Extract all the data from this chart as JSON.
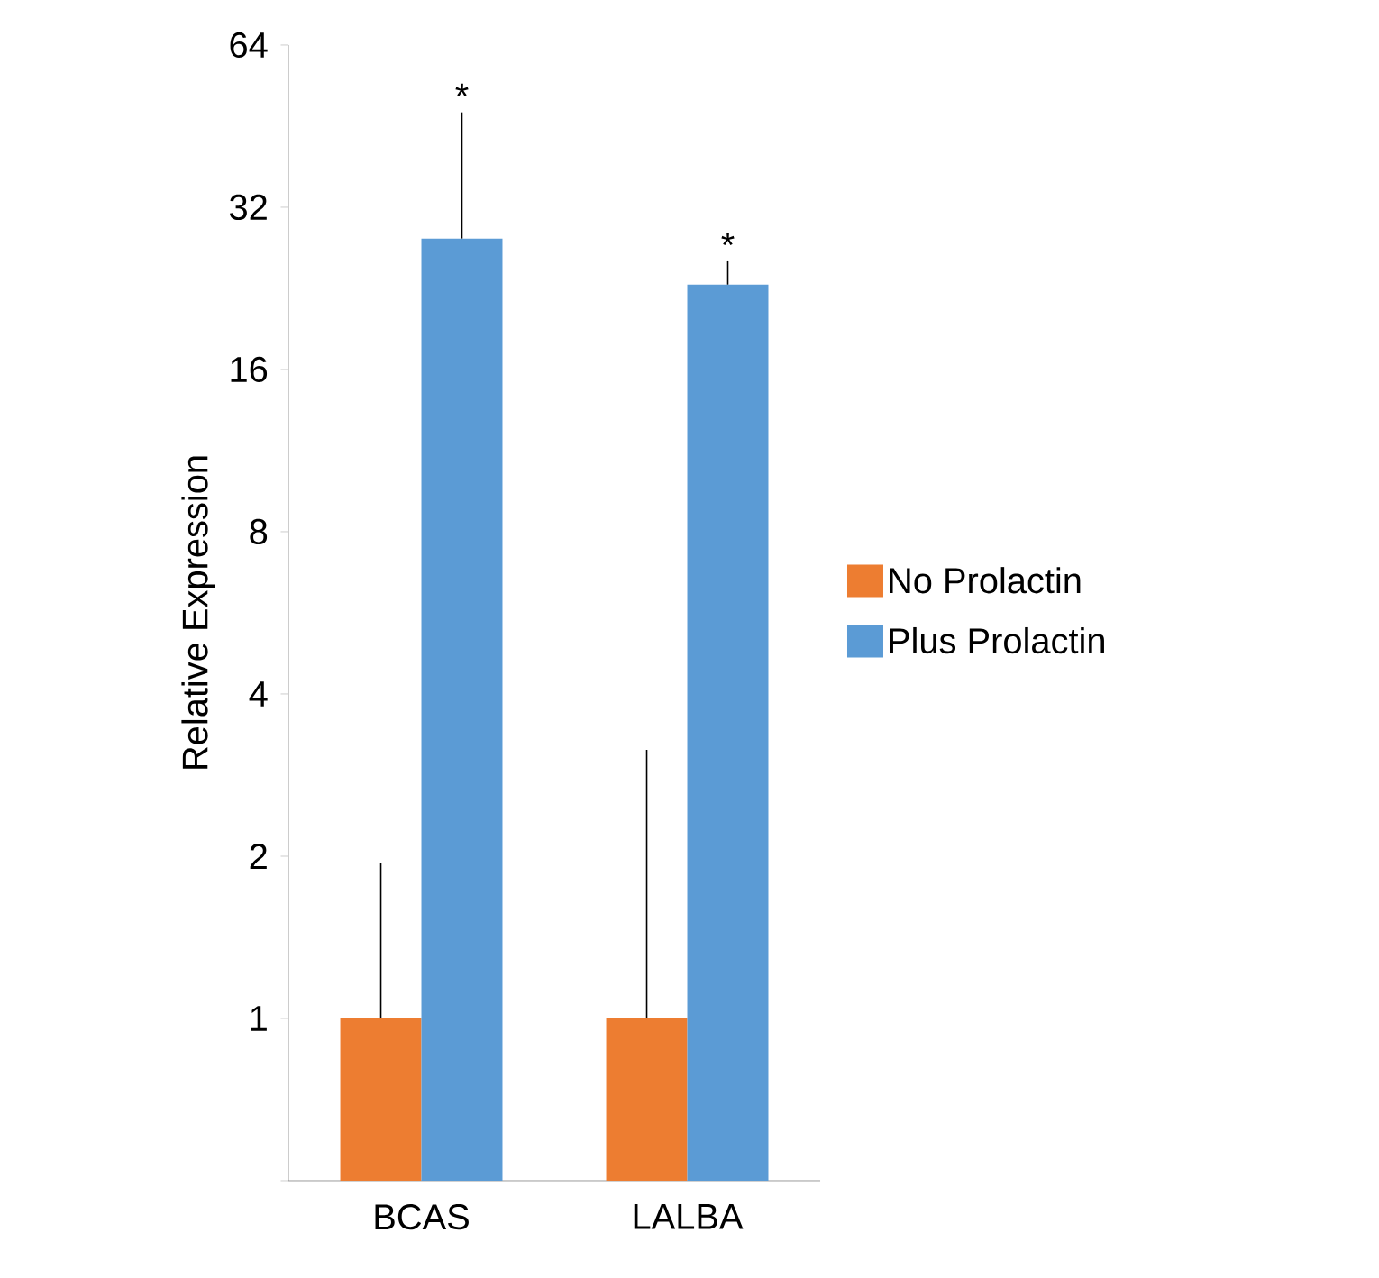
{
  "chart_data": {
    "type": "bar",
    "ylabel": "Relative Expression",
    "categories": [
      "BCAS",
      "LALBA"
    ],
    "series": [
      {
        "name": "No Prolactin",
        "color": "#ed7d31",
        "values": [
          1,
          1
        ],
        "errors": [
          [
            1,
            1.94
          ],
          [
            1,
            3.15
          ]
        ]
      },
      {
        "name": "Plus Prolactin",
        "color": "#5b9bd5",
        "values": [
          28,
          23
        ],
        "errors": [
          [
            28,
            48
          ],
          [
            23,
            25.4
          ]
        ]
      }
    ],
    "log": "y",
    "ylim": [
      0.5,
      64
    ],
    "yticks": [
      {
        "value": 0.5,
        "label": null
      },
      1,
      2,
      4,
      8,
      16,
      32,
      64
    ],
    "annotations": [
      "*",
      "*"
    ],
    "legend": "right",
    "grid": false
  }
}
